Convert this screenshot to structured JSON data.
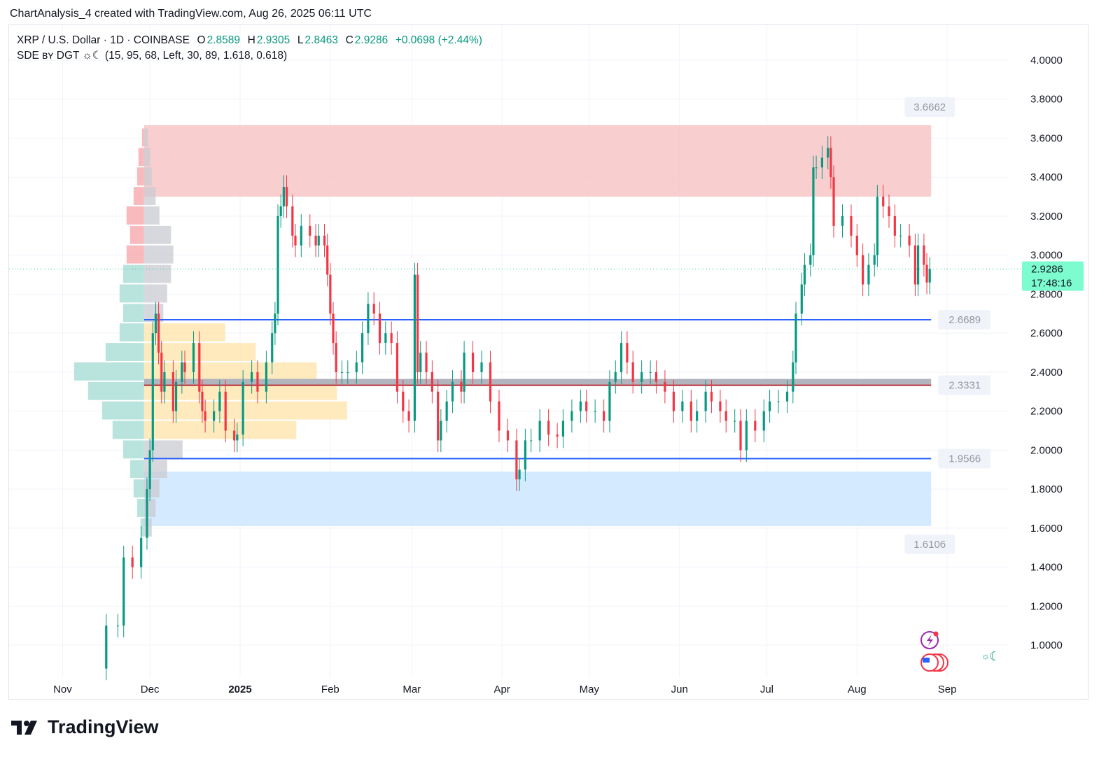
{
  "caption": "ChartAnalysis_4 created with TradingView.com, Aug 26, 2025 06:11 UTC",
  "legend": {
    "symbol": "XRP / U.S. Dollar · 1D · COINBASE",
    "o_label": "O",
    "o": "2.8589",
    "h_label": "H",
    "h": "2.9305",
    "l_label": "L",
    "l": "2.8463",
    "c_label": "C",
    "c": "2.9286",
    "change": "+0.0698 (+2.44%)",
    "indicator": "SDE ʙʏ DGT ☼☾ (15, 95, 68, Left, 30, 89, 1.618, 0.618)"
  },
  "brand": "TradingView",
  "colors": {
    "up": "#089981",
    "down": "#f23645",
    "line": "#2962ff",
    "supply": "#f7c6c7",
    "demand": "#cce8ff",
    "last": "#7dfcd0"
  },
  "icons": [
    "lightning-alert-icon",
    "us-flag-events-icon",
    "theme-toggle-icon"
  ],
  "chart_data": {
    "type": "candlestick",
    "yaxis_ticks": [
      "4.0000",
      "3.8000",
      "3.6000",
      "3.4000",
      "3.2000",
      "3.0000",
      "2.8000",
      "2.6000",
      "2.4000",
      "2.2000",
      "2.0000",
      "1.8000",
      "1.6000",
      "1.4000",
      "1.2000",
      "1.0000"
    ],
    "xaxis_ticks": [
      {
        "label": "Nov",
        "date": "2024-11-01"
      },
      {
        "label": "Dec",
        "date": "2024-12-01"
      },
      {
        "label": "2025",
        "date": "2025-01-01"
      },
      {
        "label": "Feb",
        "date": "2025-02-01"
      },
      {
        "label": "Mar",
        "date": "2025-03-01"
      },
      {
        "label": "Apr",
        "date": "2025-04-01"
      },
      {
        "label": "May",
        "date": "2025-05-01"
      },
      {
        "label": "Jun",
        "date": "2025-06-01"
      },
      {
        "label": "Jul",
        "date": "2025-07-01"
      },
      {
        "label": "Aug",
        "date": "2025-08-01"
      },
      {
        "label": "Sep",
        "date": "2025-09-01"
      }
    ],
    "ylim": [
      0.85,
      4.05
    ],
    "last_price": {
      "value": 2.9286,
      "label": "2.9286",
      "countdown": "17:48:16"
    },
    "zones": [
      {
        "kind": "supply",
        "from": 3.3,
        "to": 3.6662,
        "start": "2024-11-29",
        "label": "3.6662"
      },
      {
        "kind": "demand",
        "from": 1.6106,
        "to": 1.89,
        "start": "2024-11-29",
        "label": "1.6106"
      }
    ],
    "levels": [
      {
        "value": 2.6689,
        "label": "2.6689",
        "color": "#2962ff"
      },
      {
        "value": 2.3331,
        "label": "2.3331",
        "color": "#b22833"
      },
      {
        "value": 1.9566,
        "label": "1.9566",
        "color": "#2962ff"
      }
    ],
    "volume_profile": {
      "prices": [
        1.6,
        1.7,
        1.8,
        1.9,
        2.0,
        2.1,
        2.2,
        2.3,
        2.4,
        2.5,
        2.6,
        2.7,
        2.8,
        2.9,
        3.0,
        3.1,
        3.2,
        3.3,
        3.4,
        3.5,
        3.6
      ],
      "left": [
        5,
        10,
        15,
        20,
        30,
        45,
        60,
        80,
        100,
        55,
        35,
        30,
        35,
        30,
        25,
        20,
        25,
        15,
        10,
        8,
        3
      ],
      "right": [
        10,
        15,
        20,
        30,
        50,
        75,
        100,
        95,
        85,
        55,
        40,
        25,
        30,
        35,
        38,
        35,
        20,
        15,
        10,
        8,
        5
      ],
      "value_area": [
        2.1,
        2.6
      ]
    },
    "closes": [
      [
        "2024-11-14",
        0.88
      ],
      [
        "2024-11-16",
        1.1
      ],
      [
        "2024-11-20",
        1.1
      ],
      [
        "2024-11-22",
        1.45
      ],
      [
        "2024-11-25",
        1.4
      ],
      [
        "2024-11-28",
        1.55
      ],
      [
        "2024-11-30",
        1.8
      ],
      [
        "2024-12-01",
        2.0
      ],
      [
        "2024-12-02",
        2.6
      ],
      [
        "2024-12-03",
        2.7
      ],
      [
        "2024-12-04",
        2.5
      ],
      [
        "2024-12-05",
        2.3
      ],
      [
        "2024-12-06",
        2.4
      ],
      [
        "2024-12-09",
        2.2
      ],
      [
        "2024-12-10",
        2.35
      ],
      [
        "2024-12-12",
        2.45
      ],
      [
        "2024-12-13",
        2.4
      ],
      [
        "2024-12-16",
        2.55
      ],
      [
        "2024-12-18",
        2.3
      ],
      [
        "2024-12-19",
        2.2
      ],
      [
        "2024-12-20",
        2.15
      ],
      [
        "2024-12-23",
        2.2
      ],
      [
        "2024-12-25",
        2.3
      ],
      [
        "2024-12-27",
        2.1
      ],
      [
        "2024-12-30",
        2.05
      ],
      [
        "2024-12-31",
        2.08
      ],
      [
        "2025-01-02",
        2.35
      ],
      [
        "2025-01-05",
        2.4
      ],
      [
        "2025-01-07",
        2.3
      ],
      [
        "2025-01-10",
        2.45
      ],
      [
        "2025-01-12",
        2.6
      ],
      [
        "2025-01-13",
        2.7
      ],
      [
        "2025-01-14",
        3.2
      ],
      [
        "2025-01-15",
        3.25
      ],
      [
        "2025-01-16",
        3.35
      ],
      [
        "2025-01-17",
        3.25
      ],
      [
        "2025-01-19",
        3.1
      ],
      [
        "2025-01-20",
        3.05
      ],
      [
        "2025-01-22",
        3.15
      ],
      [
        "2025-01-25",
        3.1
      ],
      [
        "2025-01-27",
        3.05
      ],
      [
        "2025-01-28",
        3.1
      ],
      [
        "2025-01-30",
        3.05
      ],
      [
        "2025-01-31",
        2.9
      ],
      [
        "2025-02-01",
        2.7
      ],
      [
        "2025-02-02",
        2.55
      ],
      [
        "2025-02-03",
        2.4
      ],
      [
        "2025-02-05",
        2.4
      ],
      [
        "2025-02-07",
        2.4
      ],
      [
        "2025-02-10",
        2.45
      ],
      [
        "2025-02-12",
        2.6
      ],
      [
        "2025-02-14",
        2.75
      ],
      [
        "2025-02-16",
        2.7
      ],
      [
        "2025-02-18",
        2.55
      ],
      [
        "2025-02-20",
        2.6
      ],
      [
        "2025-02-22",
        2.55
      ],
      [
        "2025-02-24",
        2.3
      ],
      [
        "2025-02-26",
        2.2
      ],
      [
        "2025-02-28",
        2.15
      ],
      [
        "2025-03-02",
        2.9
      ],
      [
        "2025-03-03",
        2.4
      ],
      [
        "2025-03-04",
        2.5
      ],
      [
        "2025-03-06",
        2.4
      ],
      [
        "2025-03-08",
        2.3
      ],
      [
        "2025-03-10",
        2.05
      ],
      [
        "2025-03-11",
        2.15
      ],
      [
        "2025-03-13",
        2.25
      ],
      [
        "2025-03-15",
        2.35
      ],
      [
        "2025-03-18",
        2.3
      ],
      [
        "2025-03-19",
        2.5
      ],
      [
        "2025-03-22",
        2.4
      ],
      [
        "2025-03-25",
        2.45
      ],
      [
        "2025-03-28",
        2.25
      ],
      [
        "2025-03-31",
        2.1
      ],
      [
        "2025-04-03",
        2.05
      ],
      [
        "2025-04-06",
        1.85
      ],
      [
        "2025-04-07",
        1.9
      ],
      [
        "2025-04-09",
        2.05
      ],
      [
        "2025-04-11",
        2.05
      ],
      [
        "2025-04-14",
        2.15
      ],
      [
        "2025-04-17",
        2.08
      ],
      [
        "2025-04-20",
        2.07
      ],
      [
        "2025-04-22",
        2.15
      ],
      [
        "2025-04-25",
        2.2
      ],
      [
        "2025-04-28",
        2.25
      ],
      [
        "2025-04-30",
        2.2
      ],
      [
        "2025-05-03",
        2.2
      ],
      [
        "2025-05-06",
        2.15
      ],
      [
        "2025-05-08",
        2.35
      ],
      [
        "2025-05-10",
        2.4
      ],
      [
        "2025-05-12",
        2.55
      ],
      [
        "2025-05-14",
        2.45
      ],
      [
        "2025-05-16",
        2.35
      ],
      [
        "2025-05-19",
        2.4
      ],
      [
        "2025-05-22",
        2.4
      ],
      [
        "2025-05-24",
        2.35
      ],
      [
        "2025-05-27",
        2.3
      ],
      [
        "2025-05-30",
        2.2
      ],
      [
        "2025-06-02",
        2.25
      ],
      [
        "2025-06-05",
        2.15
      ],
      [
        "2025-06-07",
        2.2
      ],
      [
        "2025-06-10",
        2.3
      ],
      [
        "2025-06-12",
        2.25
      ],
      [
        "2025-06-15",
        2.2
      ],
      [
        "2025-06-17",
        2.15
      ],
      [
        "2025-06-20",
        2.15
      ],
      [
        "2025-06-22",
        2.0
      ],
      [
        "2025-06-24",
        2.15
      ],
      [
        "2025-06-27",
        2.1
      ],
      [
        "2025-06-30",
        2.2
      ],
      [
        "2025-07-02",
        2.25
      ],
      [
        "2025-07-05",
        2.25
      ],
      [
        "2025-07-08",
        2.3
      ],
      [
        "2025-07-10",
        2.45
      ],
      [
        "2025-07-11",
        2.7
      ],
      [
        "2025-07-13",
        2.85
      ],
      [
        "2025-07-14",
        2.95
      ],
      [
        "2025-07-16",
        3.0
      ],
      [
        "2025-07-17",
        3.45
      ],
      [
        "2025-07-18",
        3.45
      ],
      [
        "2025-07-20",
        3.5
      ],
      [
        "2025-07-22",
        3.55
      ],
      [
        "2025-07-23",
        3.4
      ],
      [
        "2025-07-24",
        3.15
      ],
      [
        "2025-07-27",
        3.2
      ],
      [
        "2025-07-30",
        3.1
      ],
      [
        "2025-08-01",
        3.0
      ],
      [
        "2025-08-03",
        2.85
      ],
      [
        "2025-08-05",
        2.95
      ],
      [
        "2025-08-07",
        3.0
      ],
      [
        "2025-08-08",
        3.3
      ],
      [
        "2025-08-10",
        3.25
      ],
      [
        "2025-08-12",
        3.2
      ],
      [
        "2025-08-14",
        3.1
      ],
      [
        "2025-08-16",
        3.1
      ],
      [
        "2025-08-19",
        3.05
      ],
      [
        "2025-08-21",
        2.85
      ],
      [
        "2025-08-22",
        3.05
      ],
      [
        "2025-08-24",
        2.95
      ],
      [
        "2025-08-25",
        2.86
      ],
      [
        "2025-08-26",
        2.93
      ]
    ]
  }
}
